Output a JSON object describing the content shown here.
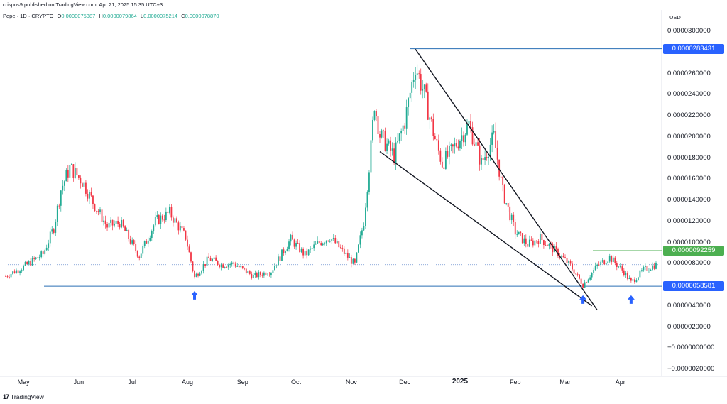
{
  "header": {
    "published": "crispus9 published on TradingView.com, Apr 21, 2025 15:35 UTC+3",
    "symbol": "Pepe · 1D · CRYPTO",
    "open_label": "O",
    "open_value": "0.0000075387",
    "high_label": "H",
    "high_value": "0.0000079864",
    "low_label": "L",
    "low_value": "0.0000075214",
    "close_label": "C",
    "close_value": "0.0000078870"
  },
  "footer": {
    "brand": "TradingView",
    "logo": "17"
  },
  "colors": {
    "up": "#22ab94",
    "down": "#f23645",
    "label_blue": "#2962ff",
    "label_green": "#4caf50",
    "grid_line": "#2a6fb5"
  },
  "chart_data": {
    "type": "candlestick",
    "currency": "USD",
    "y_axis_ticks": [
      "0.0000300000",
      "0.0000280000",
      "0.0000260000",
      "0.0000240000",
      "0.0000220000",
      "0.0000200000",
      "0.0000180000",
      "0.0000160000",
      "0.0000140000",
      "0.0000120000",
      "0.0000100000",
      "0.0000080000",
      "0.0000060000",
      "0.0000040000",
      "0.0000020000",
      "−0.0000000000",
      "−0.0000020000"
    ],
    "x_axis_ticks": [
      "May",
      "Jun",
      "Jul",
      "Aug",
      "Sep",
      "Oct",
      "Nov",
      "Dec",
      "2025",
      "Feb",
      "Mar",
      "Apr"
    ],
    "ylim": [
      -3e-06,
      3.05e-05
    ],
    "price_labels": [
      {
        "text": "0.0000283431",
        "value": 2.83431e-05,
        "color": "blue"
      },
      {
        "text": "0.0000092259",
        "value": 9.2259e-06,
        "color": "green"
      },
      {
        "text": "0.0000058581",
        "value": 5.8581e-06,
        "color": "blue"
      }
    ],
    "trend_lines": [
      {
        "name": "wedge-upper",
        "from": [
          "2024-12-07",
          2.83e-05
        ],
        "to": [
          "2025-03-19",
          3.6e-06
        ]
      },
      {
        "name": "wedge-lower",
        "from": [
          "2024-11-17",
          1.86e-05
        ],
        "to": [
          "2025-03-16",
          4e-06
        ]
      }
    ],
    "arrows": [
      {
        "date": "2024-08-05",
        "value": 5e-06
      },
      {
        "date": "2025-03-11",
        "value": 4.6e-06
      },
      {
        "date": "2025-04-07",
        "value": 4.6e-06
      }
    ],
    "closes": [
      {
        "date": "2024-04-21",
        "close": 6.8e-06
      },
      {
        "date": "2024-05-01",
        "close": 7.7e-06
      },
      {
        "date": "2024-05-12",
        "close": 8.9e-06
      },
      {
        "date": "2024-05-18",
        "close": 1.14e-05
      },
      {
        "date": "2024-05-22",
        "close": 1.5e-05
      },
      {
        "date": "2024-05-27",
        "close": 1.71e-05
      },
      {
        "date": "2024-06-03",
        "close": 1.58e-05
      },
      {
        "date": "2024-06-10",
        "close": 1.35e-05
      },
      {
        "date": "2024-06-17",
        "close": 1.15e-05
      },
      {
        "date": "2024-06-24",
        "close": 1.19e-05
      },
      {
        "date": "2024-07-05",
        "close": 8.7e-06
      },
      {
        "date": "2024-07-14",
        "close": 1.2e-05
      },
      {
        "date": "2024-07-22",
        "close": 1.28e-05
      },
      {
        "date": "2024-07-31",
        "close": 1.05e-05
      },
      {
        "date": "2024-08-05",
        "close": 6.7e-06
      },
      {
        "date": "2024-08-13",
        "close": 8.5e-06
      },
      {
        "date": "2024-08-20",
        "close": 7.9e-06
      },
      {
        "date": "2024-08-27",
        "close": 8e-06
      },
      {
        "date": "2024-09-07",
        "close": 6.8e-06
      },
      {
        "date": "2024-09-17",
        "close": 7.3e-06
      },
      {
        "date": "2024-09-28",
        "close": 1.03e-05
      },
      {
        "date": "2024-10-06",
        "close": 8.8e-06
      },
      {
        "date": "2024-10-13",
        "close": 9.9e-06
      },
      {
        "date": "2024-10-20",
        "close": 1.05e-05
      },
      {
        "date": "2024-10-27",
        "close": 9.2e-06
      },
      {
        "date": "2024-11-03",
        "close": 7.9e-06
      },
      {
        "date": "2024-11-08",
        "close": 1.2e-05
      },
      {
        "date": "2024-11-12",
        "close": 1.9e-05
      },
      {
        "date": "2024-11-14",
        "close": 2.32e-05
      },
      {
        "date": "2024-11-17",
        "close": 2.02e-05
      },
      {
        "date": "2024-11-25",
        "close": 1.82e-05
      },
      {
        "date": "2024-12-01",
        "close": 2.15e-05
      },
      {
        "date": "2024-12-07",
        "close": 2.68e-05
      },
      {
        "date": "2024-12-12",
        "close": 2.4e-05
      },
      {
        "date": "2024-12-18",
        "close": 1.98e-05
      },
      {
        "date": "2024-12-22",
        "close": 1.75e-05
      },
      {
        "date": "2024-12-28",
        "close": 1.88e-05
      },
      {
        "date": "2025-01-06",
        "close": 2.12e-05
      },
      {
        "date": "2025-01-13",
        "close": 1.75e-05
      },
      {
        "date": "2025-01-20",
        "close": 2e-05
      },
      {
        "date": "2025-01-25",
        "close": 1.48e-05
      },
      {
        "date": "2025-02-01",
        "close": 1.1e-05
      },
      {
        "date": "2025-02-08",
        "close": 9.8e-06
      },
      {
        "date": "2025-02-15",
        "close": 1.04e-05
      },
      {
        "date": "2025-02-25",
        "close": 9e-06
      },
      {
        "date": "2025-03-04",
        "close": 7.8e-06
      },
      {
        "date": "2025-03-11",
        "close": 6e-06
      },
      {
        "date": "2025-03-19",
        "close": 7.8e-06
      },
      {
        "date": "2025-03-26",
        "close": 8.6e-06
      },
      {
        "date": "2025-04-03",
        "close": 7.2e-06
      },
      {
        "date": "2025-04-07",
        "close": 6.2e-06
      },
      {
        "date": "2025-04-14",
        "close": 7.4e-06
      },
      {
        "date": "2025-04-21",
        "close": 7.9e-06
      }
    ]
  }
}
